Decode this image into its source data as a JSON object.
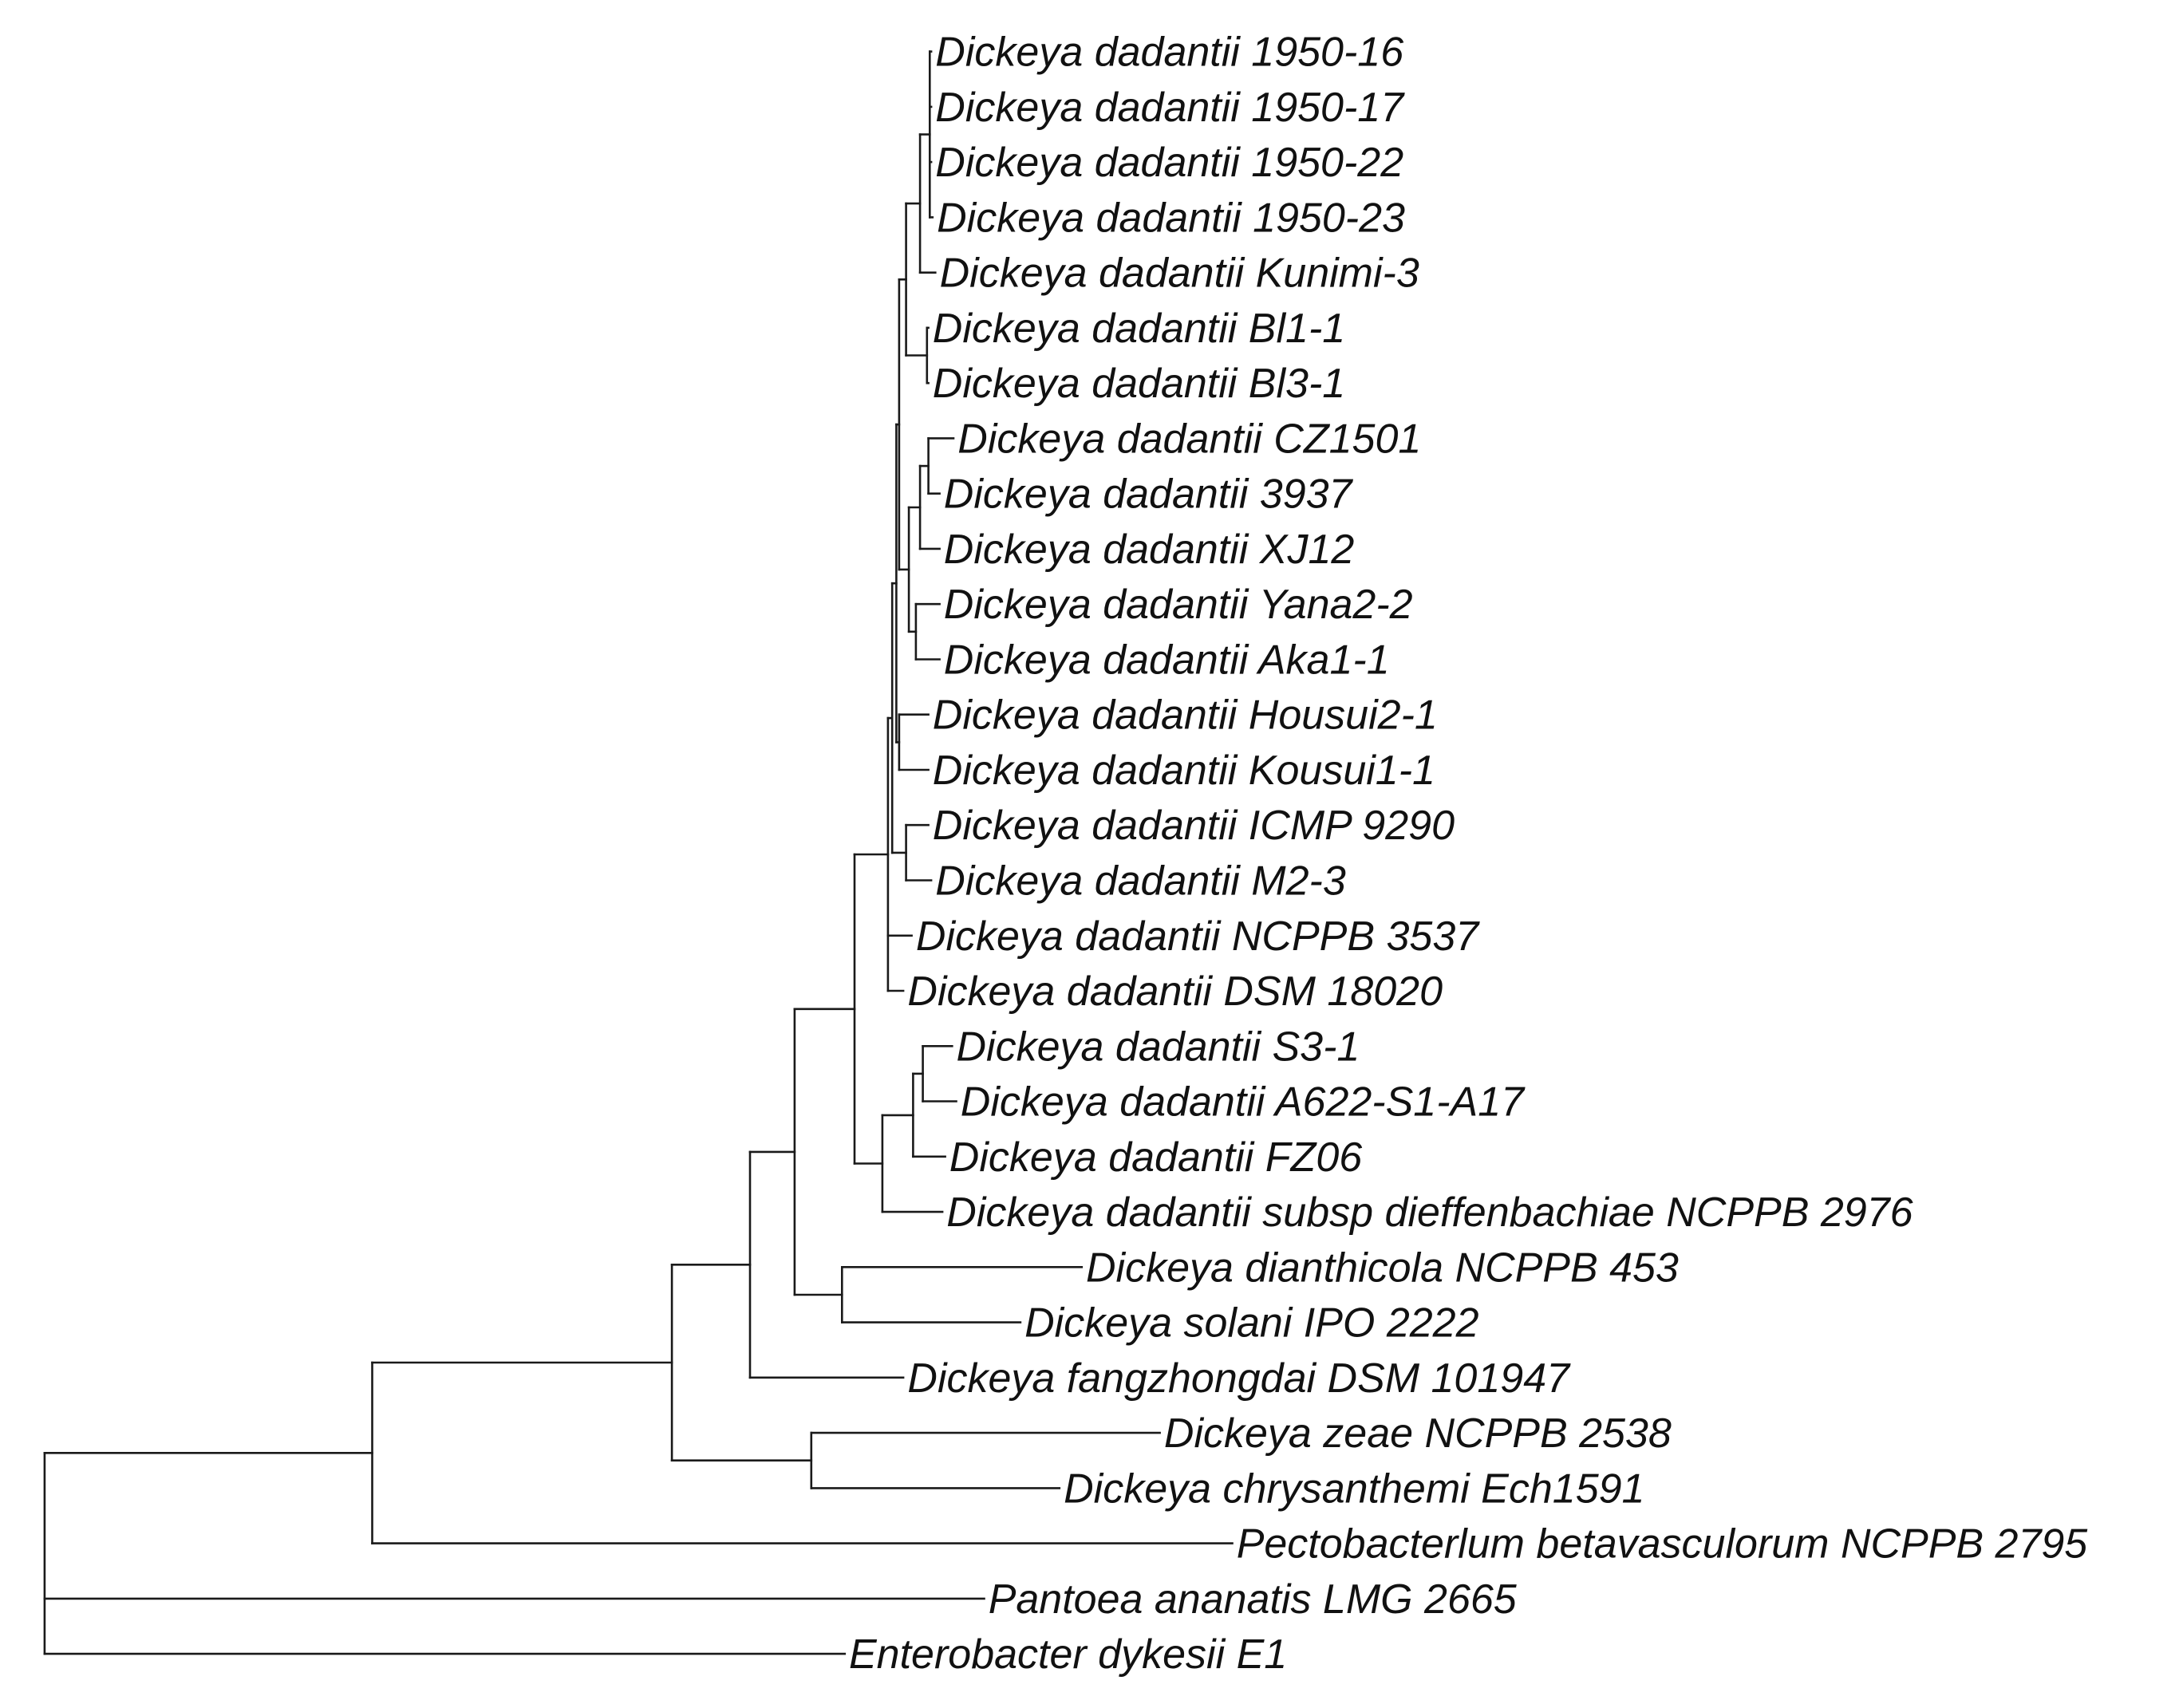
{
  "taxa": [
    "Dickeya dadantii 1950-16",
    "Dickeya dadantii 1950-17",
    "Dickeya dadantii 1950-22",
    "Dickeya dadantii 1950-23",
    "Dickeya dadantii Kunimi-3",
    "Dickeya dadantii Bl1-1",
    "Dickeya dadantii Bl3-1",
    "Dickeya dadantii CZ1501",
    "Dickeya dadantii 3937",
    "Dickeya dadantii XJ12",
    "Dickeya dadantii Yana2-2",
    "Dickeya dadantii Aka1-1",
    "Dickeya dadantii Housui2-1",
    "Dickeya dadantii Kousui1-1",
    "Dickeya dadantii ICMP 9290",
    "Dickeya dadantii M2-3",
    "Dickeya dadantii NCPPB 3537",
    "Dickeya dadantii DSM 18020",
    "Dickeya dadantii S3-1",
    "Dickeya dadantii A622-S1-A17",
    "Dickeya dadantii FZ06",
    "Dickeya dadantii subsp  dieffenbachiae NCPPB 2976",
    "Dickeya dianthicola NCPPB 453",
    "Dickeya solani IPO 2222",
    "Dickeya fangzhongdai DSM 101947",
    "Dickeya zeae NCPPB 2538",
    "Dickeya chrysanthemi Ech1591",
    "Pectobacterlum betavasculorum NCPPB 2795",
    "Pantoea ananatis LMG 2665",
    "Enterobacter dykesii E1"
  ]
}
